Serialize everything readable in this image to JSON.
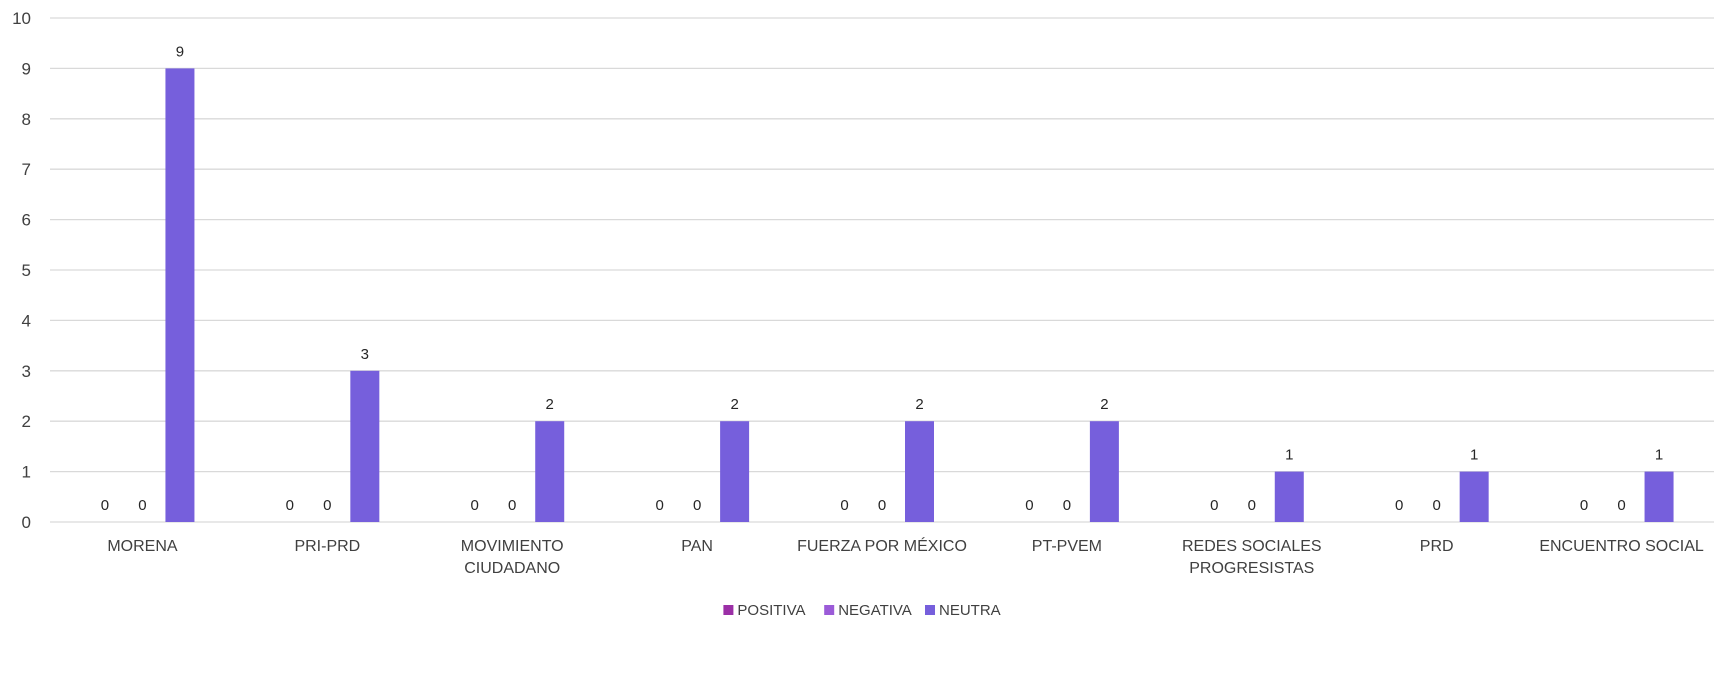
{
  "chart_data": {
    "type": "bar",
    "categories": [
      [
        "MORENA"
      ],
      [
        "PRI-PRD"
      ],
      [
        "MOVIMIENTO",
        "CIUDADANO"
      ],
      [
        "PAN"
      ],
      [
        "FUERZA POR MÉXICO"
      ],
      [
        "PT-PVEM"
      ],
      [
        "REDES SOCIALES",
        "PROGRESISTAS"
      ],
      [
        "PRD"
      ],
      [
        "ENCUENTRO SOCIAL"
      ]
    ],
    "series": [
      {
        "name": "POSITIVA",
        "color": "#9b2fa6",
        "values": [
          0,
          0,
          0,
          0,
          0,
          0,
          0,
          0,
          0
        ]
      },
      {
        "name": "NEGATIVA",
        "color": "#9b5bd8",
        "values": [
          0,
          0,
          0,
          0,
          0,
          0,
          0,
          0,
          0
        ]
      },
      {
        "name": "NEUTRA",
        "color": "#765fdc",
        "values": [
          9,
          3,
          2,
          2,
          2,
          2,
          1,
          1,
          1
        ]
      }
    ],
    "ylim": [
      0,
      10
    ],
    "yticks": [
      "0",
      "1",
      "2",
      "3",
      "4",
      "5",
      "6",
      "7",
      "8",
      "9",
      "10"
    ],
    "grid": true,
    "legend": "bottom",
    "title": "",
    "xlabel": "",
    "ylabel": ""
  }
}
